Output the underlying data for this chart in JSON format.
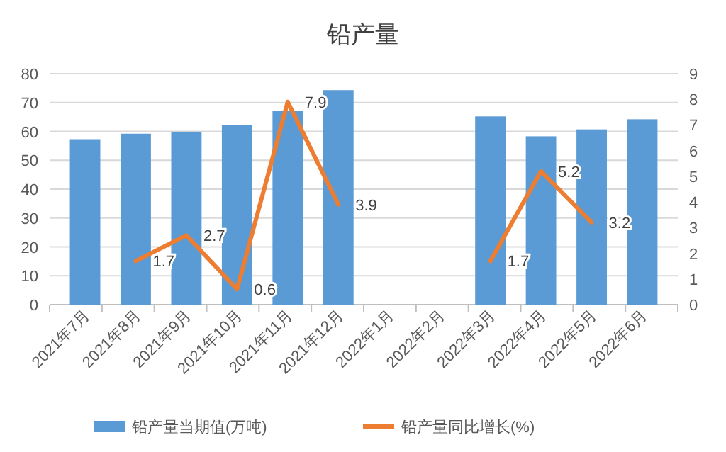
{
  "chart_data": {
    "type": "bar",
    "title": "铅产量",
    "categories": [
      "2021年7月",
      "2021年8月",
      "2021年9月",
      "2021年10月",
      "2021年11月",
      "2021年12月",
      "2022年1月",
      "2022年2月",
      "2022年3月",
      "2022年4月",
      "2022年5月",
      "2022年6月"
    ],
    "series": [
      {
        "name": "铅产量当期值(万吨)",
        "color": "#5b9bd5",
        "values": [
          57.3,
          59.2,
          59.9,
          62.2,
          67,
          74.3,
          null,
          null,
          65.2,
          58.3,
          60.7,
          64.2
        ]
      },
      {
        "name": "铅产量同比增长(%)",
        "type": "line",
        "axis": "y2",
        "color": "#ed7d31",
        "values": [
          null,
          1.7,
          2.7,
          0.6,
          7.9,
          3.9,
          null,
          null,
          1.7,
          5.2,
          3.2,
          null
        ],
        "value_labels": [
          null,
          "1.7",
          "2.7",
          "0.6",
          "7.9",
          "3.9",
          null,
          null,
          "1.7",
          "5.2",
          "3.2",
          null
        ]
      }
    ],
    "ylim": [
      0,
      80
    ],
    "yticks": [
      0,
      10,
      20,
      30,
      40,
      50,
      60,
      70,
      80
    ],
    "y2lim": [
      0,
      9
    ],
    "y2ticks": [
      0,
      1,
      2,
      3,
      4,
      5,
      6,
      7,
      8,
      9
    ],
    "grid": "y",
    "legend": "bottom",
    "marker": "none",
    "line_style": "solid"
  }
}
